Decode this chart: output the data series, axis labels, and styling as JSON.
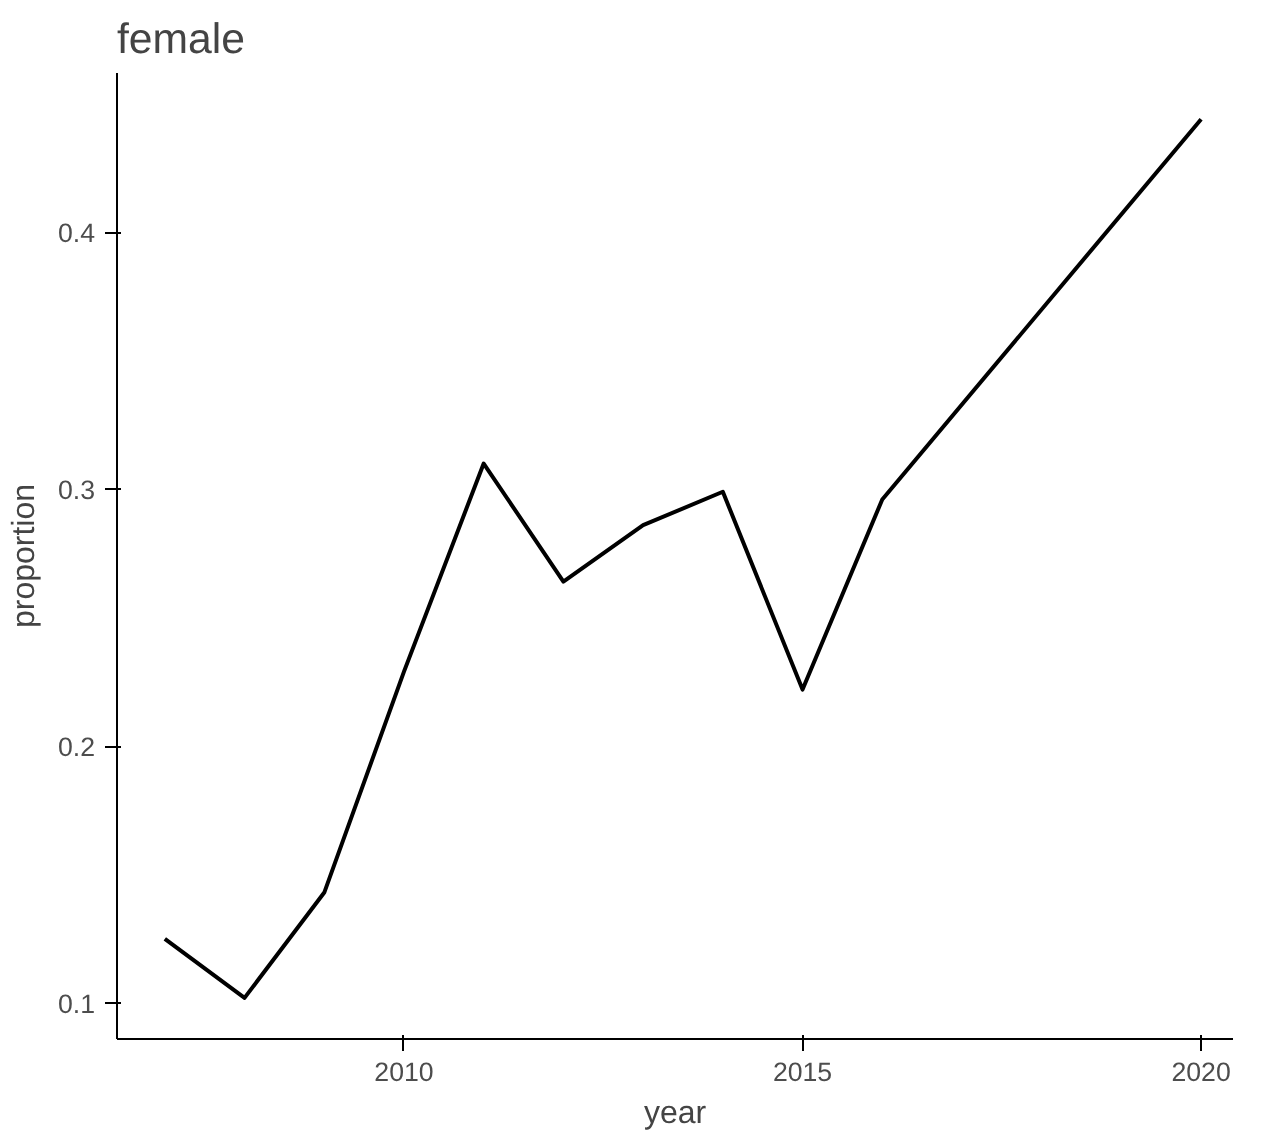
{
  "chart_data": {
    "type": "line",
    "title": "female",
    "xlabel": "year",
    "ylabel": "proportion",
    "x": [
      2007,
      2008,
      2009,
      2010,
      2011,
      2012,
      2013,
      2014,
      2015,
      2016,
      2020
    ],
    "series": [
      {
        "color": "#000000",
        "values": [
          0.125,
          0.102,
          0.143,
          0.229,
          0.31,
          0.264,
          0.286,
          0.299,
          0.222,
          0.296,
          0.444
        ]
      }
    ],
    "xlim": [
      2006.4,
      2020.4
    ],
    "ylim": [
      0.086,
      0.462
    ],
    "xticks": [
      2010,
      2015,
      2020
    ],
    "yticks": [
      0.1,
      0.2,
      0.3,
      0.4
    ],
    "grid": false
  }
}
